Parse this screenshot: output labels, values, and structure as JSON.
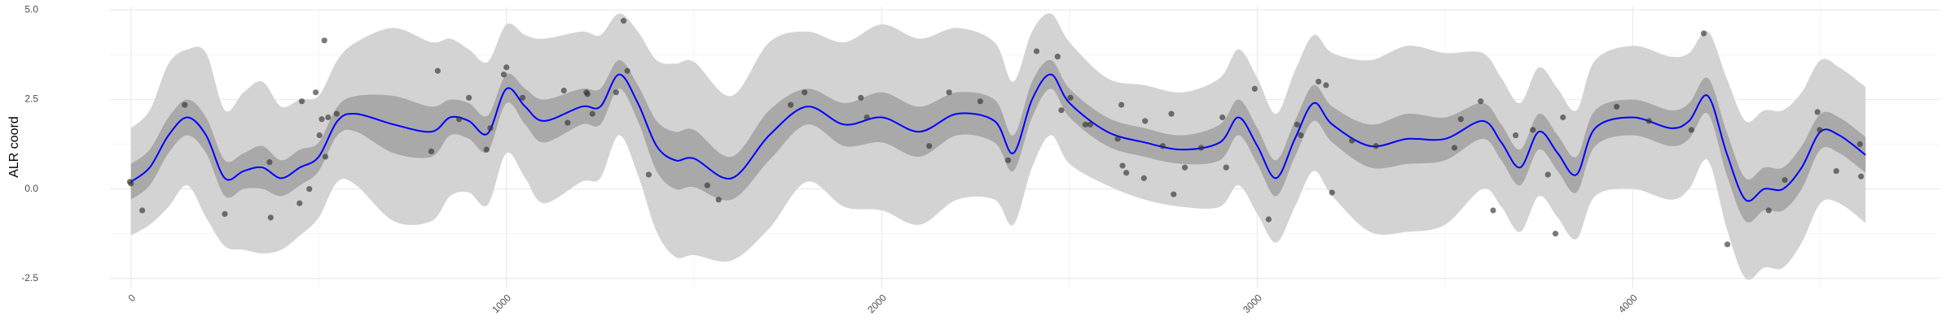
{
  "chart_data": {
    "type": "line",
    "y_label": "ALR coord",
    "x": [
      0,
      50,
      100,
      150,
      200,
      250,
      300,
      350,
      400,
      450,
      500,
      550,
      600,
      700,
      800,
      850,
      900,
      950,
      1000,
      1050,
      1100,
      1200,
      1250,
      1300,
      1350,
      1400,
      1450,
      1500,
      1600,
      1700,
      1800,
      1900,
      2000,
      2100,
      2200,
      2300,
      2350,
      2400,
      2450,
      2500,
      2600,
      2700,
      2800,
      2900,
      2950,
      3000,
      3050,
      3100,
      3150,
      3200,
      3300,
      3400,
      3500,
      3600,
      3650,
      3700,
      3750,
      3800,
      3850,
      3900,
      4000,
      4100,
      4150,
      4200,
      4250,
      4300,
      4350,
      4400,
      4450,
      4500,
      4550,
      4620
    ],
    "series": [
      {
        "color": "#0000ff",
        "values": [
          0.2,
          0.6,
          1.5,
          2.0,
          1.5,
          0.3,
          0.5,
          0.6,
          0.3,
          0.6,
          0.9,
          1.9,
          2.1,
          1.8,
          1.6,
          2.0,
          1.9,
          1.55,
          2.8,
          2.3,
          1.9,
          2.3,
          2.3,
          3.2,
          2.4,
          1.2,
          0.8,
          0.85,
          0.3,
          1.5,
          2.3,
          1.8,
          2.0,
          1.6,
          2.1,
          1.9,
          1.0,
          2.5,
          3.2,
          2.4,
          1.6,
          1.3,
          1.1,
          1.3,
          2.0,
          1.2,
          0.3,
          1.4,
          2.4,
          1.8,
          1.2,
          1.4,
          1.4,
          1.9,
          1.3,
          0.6,
          1.6,
          1.0,
          0.4,
          1.7,
          2.0,
          1.7,
          1.9,
          2.6,
          1.0,
          -0.3,
          0,
          0,
          0.6,
          1.6,
          1.5,
          0.95
        ]
      }
    ],
    "ribbons": [
      {
        "color": "#d3d3d3",
        "lower": [
          -1.3,
          -1.0,
          -0.5,
          0.1,
          -0.8,
          -1.6,
          -1.7,
          -1.8,
          -1.7,
          -1.3,
          -0.8,
          0.2,
          0.1,
          -0.9,
          -0.9,
          -0.2,
          -0.1,
          -0.45,
          1.0,
          0.3,
          -0.4,
          0.2,
          0.3,
          1.5,
          0.4,
          -1.2,
          -1.9,
          -1.85,
          -2.0,
          -1.1,
          0.2,
          -0.5,
          -0.6,
          -1.0,
          -0.3,
          -0.3,
          -1.0,
          0.6,
          1.5,
          0.7,
          0.1,
          -0.3,
          -0.5,
          -0.5,
          0.1,
          -0.7,
          -1.5,
          -0.5,
          0.5,
          -0.2,
          -1.2,
          -1.2,
          -1.0,
          0,
          -0.5,
          -1.2,
          -0.2,
          -0.8,
          -1.4,
          -0.2,
          0,
          -0.3,
          0,
          0.8,
          -1.1,
          -2.5,
          -2.2,
          -2.2,
          -1.5,
          -0.4,
          -0.4,
          -0.95
        ],
        "upper": [
          1.7,
          2.2,
          3.5,
          3.9,
          3.8,
          2.2,
          2.7,
          3.0,
          2.3,
          2.5,
          2.6,
          3.6,
          4.1,
          4.5,
          4.1,
          4.2,
          3.9,
          3.55,
          4.6,
          4.3,
          4.2,
          4.4,
          4.3,
          4.9,
          4.4,
          3.6,
          3.5,
          3.55,
          2.6,
          4.1,
          4.4,
          4.1,
          4.6,
          4.2,
          4.5,
          4.1,
          3.0,
          4.4,
          4.9,
          4.1,
          3.1,
          2.9,
          2.7,
          3.1,
          3.9,
          3.1,
          2.1,
          3.3,
          4.3,
          3.8,
          3.6,
          4.0,
          3.8,
          3.8,
          3.1,
          2.4,
          3.4,
          2.8,
          2.2,
          3.6,
          4.0,
          3.7,
          3.8,
          4.4,
          3.1,
          1.9,
          2.2,
          2.2,
          2.7,
          3.6,
          3.4,
          2.85
        ]
      },
      {
        "color": "#a9a9a9",
        "lower": [
          -0.3,
          0.1,
          1.0,
          1.5,
          1.0,
          -0.2,
          0,
          0,
          -0.2,
          0.1,
          0.5,
          1.5,
          1.6,
          1.0,
          0.9,
          1.5,
          1.4,
          1.05,
          2.4,
          1.8,
          1.3,
          1.8,
          1.8,
          2.8,
          1.9,
          0.5,
          0,
          0.05,
          -0.3,
          0.8,
          1.8,
          1.2,
          1.3,
          0.9,
          1.5,
          1.3,
          0.5,
          2.0,
          2.8,
          2.0,
          1.2,
          0.9,
          0.7,
          0.8,
          1.5,
          0.7,
          -0.2,
          0.9,
          1.9,
          1.3,
          0.6,
          0.7,
          0.8,
          1.4,
          0.8,
          0.1,
          1.1,
          0.5,
          -0.1,
          1.2,
          1.5,
          1.2,
          1.4,
          2.1,
          0.4,
          -0.9,
          -0.6,
          -0.6,
          0,
          1.1,
          1.0,
          0.45
        ],
        "upper": [
          0.7,
          1.1,
          2.0,
          2.5,
          2.0,
          0.8,
          1.0,
          1.2,
          0.8,
          1.1,
          1.3,
          2.3,
          2.6,
          2.6,
          2.3,
          2.5,
          2.4,
          2.05,
          3.2,
          2.8,
          2.5,
          2.8,
          2.8,
          3.6,
          2.9,
          1.9,
          1.6,
          1.65,
          0.9,
          2.2,
          2.8,
          2.4,
          2.7,
          2.3,
          2.7,
          2.5,
          1.5,
          3.0,
          3.6,
          2.8,
          2.0,
          1.7,
          1.5,
          1.8,
          2.5,
          1.7,
          0.8,
          1.9,
          2.9,
          2.3,
          1.8,
          2.1,
          2.0,
          2.4,
          1.8,
          1.1,
          2.1,
          1.5,
          0.9,
          2.2,
          2.5,
          2.2,
          2.4,
          3.1,
          1.6,
          0.3,
          0.6,
          0.6,
          1.2,
          2.1,
          2.0,
          1.45
        ]
      }
    ],
    "points": {
      "color": "#333333",
      "opacity": 0.65,
      "x": [
        -3,
        0,
        30,
        143,
        250,
        369,
        372,
        449,
        455,
        475,
        492,
        502,
        508,
        515,
        518,
        525,
        548,
        800,
        817,
        874,
        900,
        947,
        957,
        993,
        1000,
        1043,
        1153,
        1163,
        1213,
        1216,
        1229,
        1292,
        1312,
        1322,
        1379,
        1535,
        1565,
        1757,
        1794,
        1944,
        1960,
        2126,
        2179,
        2262,
        2336,
        2412,
        2468,
        2478,
        2502,
        2542,
        2555,
        2628,
        2638,
        2641,
        2651,
        2698,
        2701,
        2748,
        2771,
        2777,
        2807,
        2850,
        2907,
        2917,
        2993,
        3030,
        3106,
        3116,
        3163,
        3183,
        3199,
        3252,
        3316,
        3525,
        3542,
        3595,
        3628,
        3688,
        3734,
        3774,
        3794,
        3814,
        3957,
        4043,
        4156,
        4189,
        4252,
        4362,
        4405,
        4492,
        4498,
        4542,
        4605,
        4608
      ],
      "y": [
        0.2,
        0.15,
        -0.6,
        2.35,
        -0.7,
        0.75,
        -0.8,
        -0.4,
        2.45,
        0,
        2.7,
        1.5,
        1.95,
        4.15,
        0.9,
        2.0,
        2.1,
        1.05,
        3.3,
        1.95,
        2.55,
        1.1,
        1.7,
        3.2,
        3.4,
        2.55,
        2.75,
        1.85,
        2.7,
        2.65,
        2.1,
        2.7,
        4.7,
        3.3,
        0.4,
        0.1,
        -0.3,
        2.35,
        2.7,
        2.55,
        2.0,
        1.2,
        2.7,
        2.45,
        0.8,
        3.85,
        3.7,
        2.2,
        2.55,
        1.8,
        1.8,
        1.4,
        2.35,
        0.65,
        0.45,
        0.3,
        1.9,
        1.2,
        2.1,
        -0.15,
        0.6,
        1.15,
        2.0,
        0.6,
        2.8,
        -0.85,
        1.8,
        1.5,
        3.0,
        2.9,
        -0.1,
        1.35,
        1.2,
        1.15,
        1.95,
        2.45,
        -0.6,
        1.5,
        1.65,
        0.4,
        -1.25,
        2.0,
        2.3,
        1.9,
        1.65,
        4.35,
        -1.55,
        -0.6,
        0.25,
        2.15,
        1.65,
        0.5,
        1.25,
        0.35
      ]
    },
    "xlim": [
      -56,
      4817
    ],
    "ylim": [
      -2.78,
      5.1
    ],
    "xticks": [
      0,
      1000,
      2000,
      3000,
      4000
    ],
    "yticks": [
      -2.5,
      {
        "value": 0,
        "label": "0.0"
      },
      2.5,
      {
        "value": 5,
        "label": "5.0"
      }
    ],
    "x_minor_ticks": [
      500,
      1500,
      2500,
      3500,
      4500
    ],
    "y_minor_ticks": [
      -1.25,
      1.25,
      3.75
    ],
    "grid": true
  }
}
